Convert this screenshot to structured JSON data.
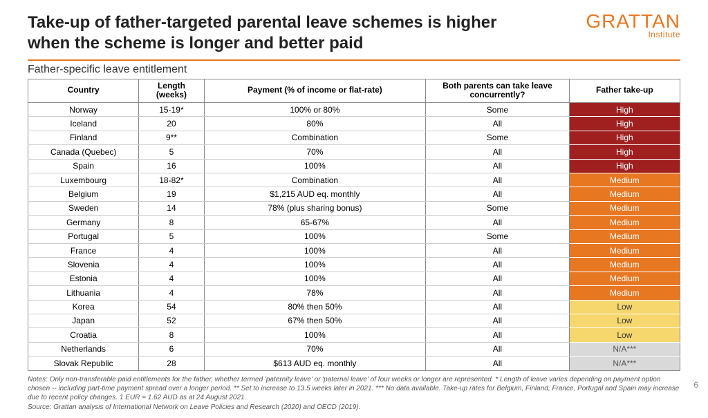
{
  "title": "Take-up of father-targeted parental leave schemes is higher when the scheme is longer and better paid",
  "logo": {
    "main": "GRATTAN",
    "sub": "Institute"
  },
  "subtitle": "Father-specific leave entitlement",
  "columns": {
    "country": "Country",
    "length": "Length (weeks)",
    "payment": "Payment (% of income  or flat-rate)",
    "concurrent": "Both parents can take leave  concurrently?",
    "takeup": "Father take-up"
  },
  "col_widths": {
    "country": "17%",
    "length": "10%",
    "payment": "34%",
    "concurrent": "22%",
    "takeup": "17%"
  },
  "takeup_colors": {
    "High": {
      "bg": "#a02020",
      "fg": "#ffffff"
    },
    "Medium": {
      "bg": "#e87722",
      "fg": "#ffffff"
    },
    "Low": {
      "bg": "#f5d76e",
      "fg": "#333333"
    },
    "N/A***": {
      "bg": "#d9d9d9",
      "fg": "#555555"
    }
  },
  "rows": [
    {
      "country": "Norway",
      "length": "15-19*",
      "payment": "100% or 80%",
      "concurrent": "Some",
      "takeup": "High"
    },
    {
      "country": "Iceland",
      "length": "20",
      "payment": "80%",
      "concurrent": "All",
      "takeup": "High"
    },
    {
      "country": "Finland",
      "length": "9**",
      "payment": "Combination",
      "concurrent": "Some",
      "takeup": "High"
    },
    {
      "country": "Canada  (Quebec)",
      "length": "5",
      "payment": "70%",
      "concurrent": "All",
      "takeup": "High"
    },
    {
      "country": "Spain",
      "length": "16",
      "payment": "100%",
      "concurrent": "All",
      "takeup": "High"
    },
    {
      "country": "Luxembourg",
      "length": "18-82*",
      "payment": "Combination",
      "concurrent": "All",
      "takeup": "Medium"
    },
    {
      "country": "Belgium",
      "length": "19",
      "payment": "$1,215 AUD eq. monthly",
      "concurrent": "All",
      "takeup": "Medium"
    },
    {
      "country": "Sweden",
      "length": "14",
      "payment": "78% (plus sharing bonus)",
      "concurrent": "Some",
      "takeup": "Medium"
    },
    {
      "country": "Germany",
      "length": "8",
      "payment": "65-67%",
      "concurrent": "All",
      "takeup": "Medium"
    },
    {
      "country": "Portugal",
      "length": "5",
      "payment": "100%",
      "concurrent": "Some",
      "takeup": "Medium"
    },
    {
      "country": "France",
      "length": "4",
      "payment": "100%",
      "concurrent": "All",
      "takeup": "Medium"
    },
    {
      "country": "Slovenia",
      "length": "4",
      "payment": "100%",
      "concurrent": "All",
      "takeup": "Medium"
    },
    {
      "country": "Estonia",
      "length": "4",
      "payment": "100%",
      "concurrent": "All",
      "takeup": "Medium"
    },
    {
      "country": "Lithuania",
      "length": "4",
      "payment": "78%",
      "concurrent": "All",
      "takeup": "Medium"
    },
    {
      "country": "Korea",
      "length": "54",
      "payment": "80% then  50%",
      "concurrent": "All",
      "takeup": "Low"
    },
    {
      "country": "Japan",
      "length": "52",
      "payment": "67% then  50%",
      "concurrent": "All",
      "takeup": "Low"
    },
    {
      "country": "Croatia",
      "length": "8",
      "payment": "100%",
      "concurrent": "All",
      "takeup": "Low"
    },
    {
      "country": "Netherlands",
      "length": "6",
      "payment": "70%",
      "concurrent": "All",
      "takeup": "N/A***"
    },
    {
      "country": "Slovak Republic",
      "length": "28",
      "payment": "$613 AUD eq. monthly",
      "concurrent": "All",
      "takeup": "N/A***"
    }
  ],
  "notes": "Notes: Only non-transferable paid entitlements for the father, whether  termed 'paternity leave' or 'paternal leave' of four weeks or longer are represented.    * Length of leave varies depending  on payment option chosen -- including part-time payment spread over a longer period. ** Set to increase to 13.5 weeks later in 2021. *** No data available. Take-up rates for Belgium, Finland, France, Portugal and Spain may increase due to recent policy changes. 1 EUR = 1.62 AUD as at 24 August 2021.",
  "source": "Source: Grattan analysis of International Network on Leave Policies and Research (2020) and OECD (2019).",
  "page_number": "6"
}
